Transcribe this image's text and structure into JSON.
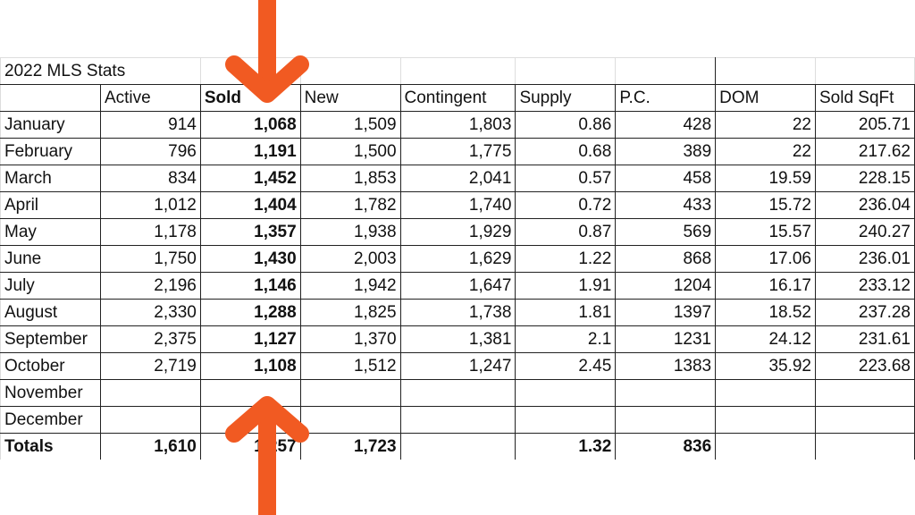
{
  "sheet": {
    "title": "2022 MLS Stats",
    "headers": [
      "",
      "Active",
      "Sold",
      "New",
      "Contingent",
      "Supply",
      "P.C.",
      "DOM",
      "Sold SqFt"
    ],
    "rows": [
      [
        "January",
        "914",
        "1,068",
        "1,509",
        "1,803",
        "0.86",
        "428",
        "22",
        "205.71"
      ],
      [
        "February",
        "796",
        "1,191",
        "1,500",
        "1,775",
        "0.68",
        "389",
        "22",
        "217.62"
      ],
      [
        "March",
        "834",
        "1,452",
        "1,853",
        "2,041",
        "0.57",
        "458",
        "19.59",
        "228.15"
      ],
      [
        "April",
        "1,012",
        "1,404",
        "1,782",
        "1,740",
        "0.72",
        "433",
        "15.72",
        "236.04"
      ],
      [
        "May",
        "1,178",
        "1,357",
        "1,938",
        "1,929",
        "0.87",
        "569",
        "15.57",
        "240.27"
      ],
      [
        "June",
        "1,750",
        "1,430",
        "2,003",
        "1,629",
        "1.22",
        "868",
        "17.06",
        "236.01"
      ],
      [
        "July",
        "2,196",
        "1,146",
        "1,942",
        "1,647",
        "1.91",
        "1204",
        "16.17",
        "233.12"
      ],
      [
        "August",
        "2,330",
        "1,288",
        "1,825",
        "1,738",
        "1.81",
        "1397",
        "18.52",
        "237.28"
      ],
      [
        "September",
        "2,375",
        "1,127",
        "1,370",
        "1,381",
        "2.1",
        "1231",
        "24.12",
        "231.61"
      ],
      [
        "October",
        "2,719",
        "1,108",
        "1,512",
        "1,247",
        "2.45",
        "1383",
        "35.92",
        "223.68"
      ],
      [
        "November",
        "",
        "",
        "",
        "",
        "",
        "",
        "",
        ""
      ],
      [
        "December",
        "",
        "",
        "",
        "",
        "",
        "",
        "",
        ""
      ]
    ],
    "totals": [
      "Totals",
      "1,610",
      "1,257",
      "1,723",
      "",
      "1.32",
      "836",
      "",
      ""
    ]
  },
  "annotations": {
    "arrow_color": "#f15a22",
    "top_arrow_icon": "arrow-down-icon",
    "bottom_arrow_icon": "arrow-up-icon"
  }
}
